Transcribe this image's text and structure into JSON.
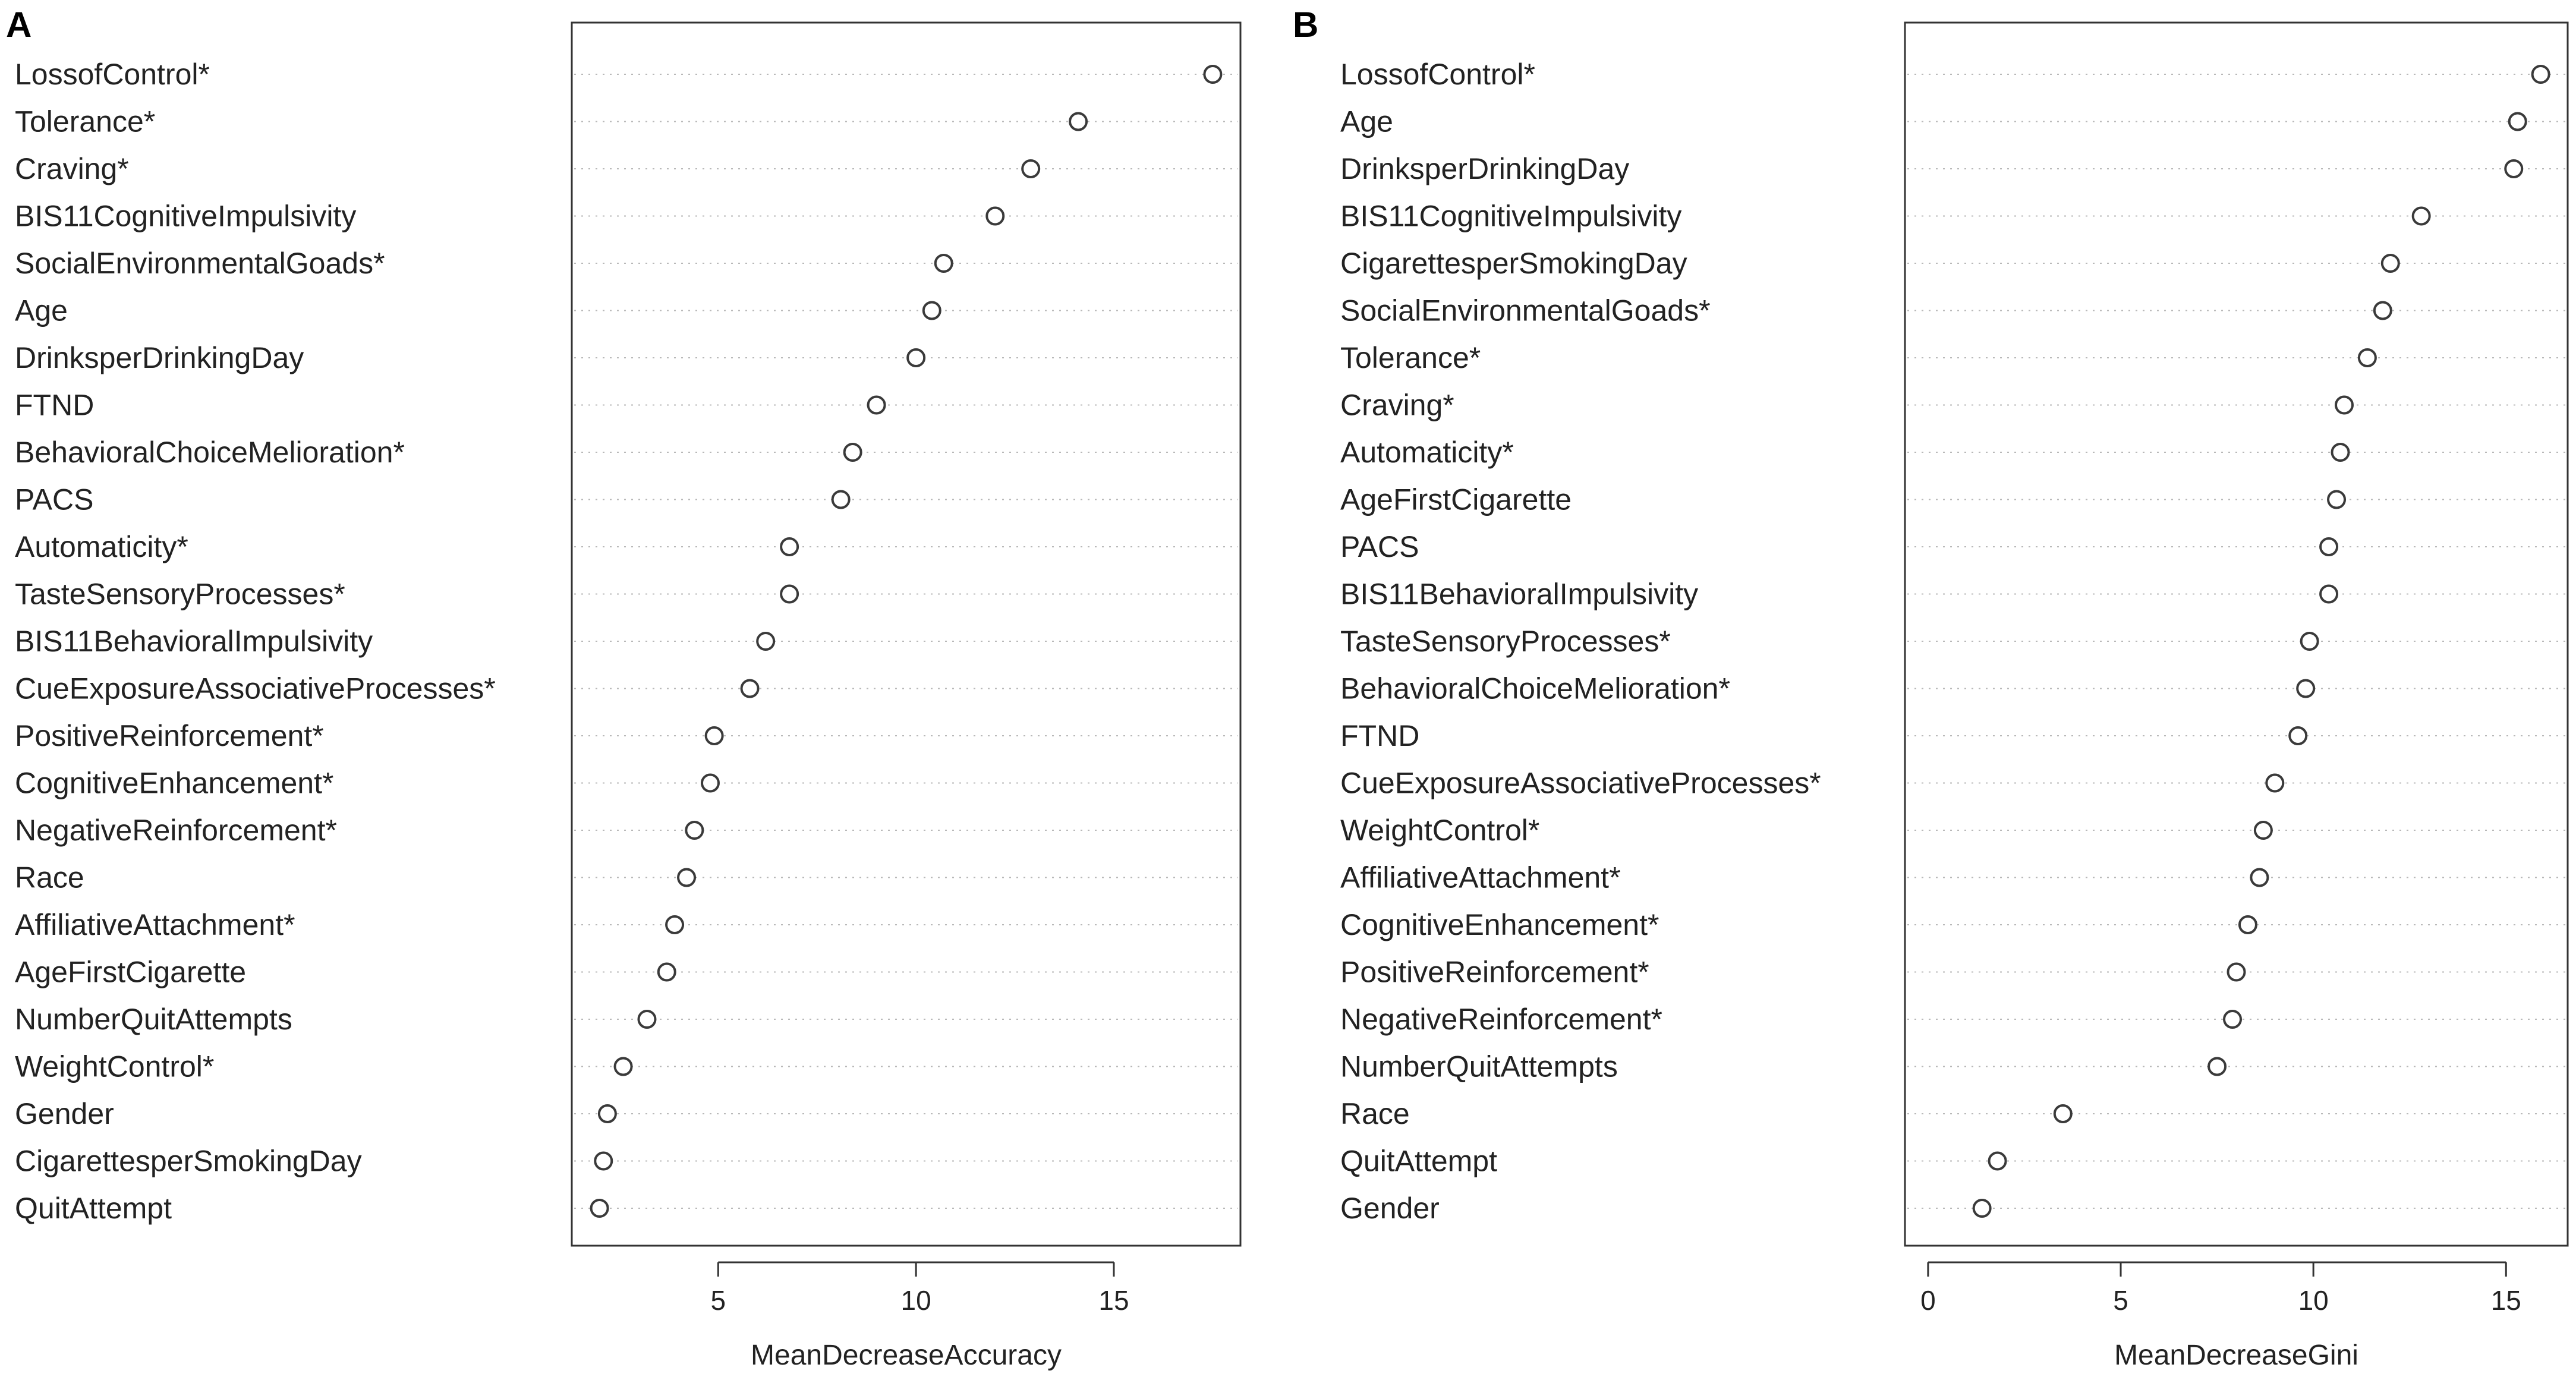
{
  "chart_data": [
    {
      "type": "scatter",
      "panel_label": "A",
      "xlabel": "MeanDecreaseAccuracy",
      "xlim": [
        1.3,
        18.2
      ],
      "xticks": [
        5,
        10,
        15
      ],
      "categories": [
        "LossofControl*",
        "Tolerance*",
        "Craving*",
        "BIS11CognitiveImpulsivity",
        "SocialEnvironmentalGoads*",
        "Age",
        "DrinksperDrinkingDay",
        "FTND",
        "BehavioralChoiceMelioration*",
        "PACS",
        "Automaticity*",
        "TasteSensoryProcesses*",
        "BIS11BehavioralImpulsivity",
        "CueExposureAssociativeProcesses*",
        "PositiveReinforcement*",
        "CognitiveEnhancement*",
        "NegativeReinforcement*",
        "Race",
        "AffiliativeAttachment*",
        "AgeFirstCigarette",
        "NumberQuitAttempts",
        "WeightControl*",
        "Gender",
        "CigarettesperSmokingDay",
        "QuitAttempt"
      ],
      "values": [
        17.5,
        14.1,
        12.9,
        12.0,
        10.7,
        10.4,
        10.0,
        9.0,
        8.4,
        8.1,
        6.8,
        6.8,
        6.2,
        5.8,
        4.9,
        4.8,
        4.4,
        4.2,
        3.9,
        3.7,
        3.2,
        2.6,
        2.2,
        2.1,
        2.0
      ],
      "grid": true
    },
    {
      "type": "scatter",
      "panel_label": "B",
      "xlabel": "MeanDecreaseGini",
      "xlim": [
        -0.6,
        16.6
      ],
      "xticks": [
        0,
        5,
        10,
        15
      ],
      "categories": [
        "LossofControl*",
        "Age",
        "DrinksperDrinkingDay",
        "BIS11CognitiveImpulsivity",
        "CigarettesperSmokingDay",
        "SocialEnvironmentalGoads*",
        "Tolerance*",
        "Craving*",
        "Automaticity*",
        "AgeFirstCigarette",
        "PACS",
        "BIS11BehavioralImpulsivity",
        "TasteSensoryProcesses*",
        "BehavioralChoiceMelioration*",
        "FTND",
        "CueExposureAssociativeProcesses*",
        "WeightControl*",
        "AffiliativeAttachment*",
        "CognitiveEnhancement*",
        "PositiveReinforcement*",
        "NegativeReinforcement*",
        "NumberQuitAttempts",
        "Race",
        "QuitAttempt",
        "Gender"
      ],
      "values": [
        15.9,
        15.3,
        15.2,
        12.8,
        12.0,
        11.8,
        11.4,
        10.8,
        10.7,
        10.6,
        10.4,
        10.4,
        9.9,
        9.8,
        9.6,
        9.0,
        8.7,
        8.6,
        8.3,
        8.0,
        7.9,
        7.5,
        3.5,
        1.8,
        1.4
      ],
      "grid": true
    }
  ]
}
